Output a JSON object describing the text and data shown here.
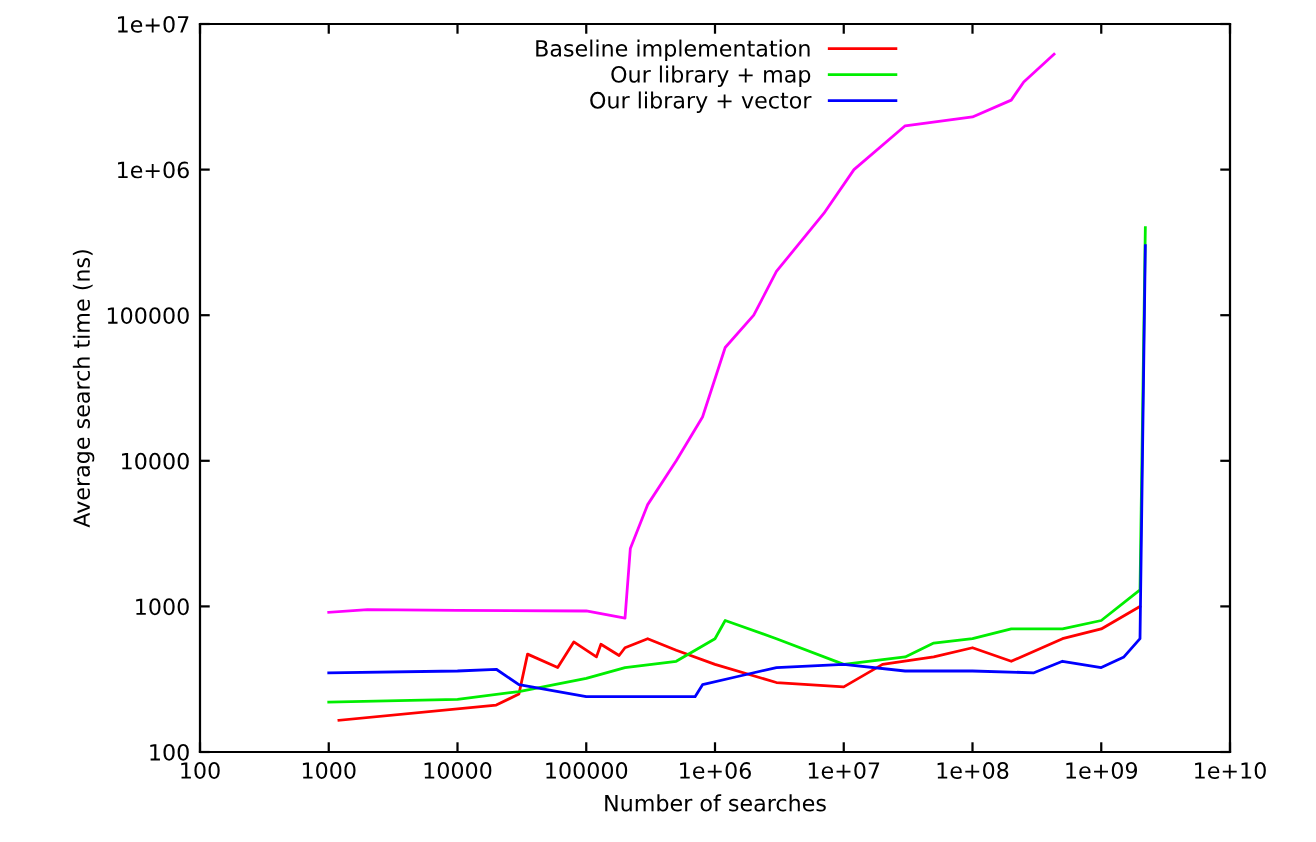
{
  "chart_data": {
    "type": "line",
    "xlabel": "Number of searches",
    "ylabel": "Average search time (ns)",
    "log": "xy",
    "xlim": [
      100,
      10000000000.0
    ],
    "ylim": [
      100,
      10000000.0
    ],
    "xticks": [
      100,
      1000,
      10000,
      100000,
      {
        "value": 1000000.0,
        "label": "1e+06"
      },
      {
        "value": 10000000.0,
        "label": "1e+07"
      },
      {
        "value": 100000000.0,
        "label": "1e+08"
      },
      {
        "value": 1000000000.0,
        "label": "1e+09"
      },
      {
        "value": 10000000000.0,
        "label": "1e+10"
      }
    ],
    "yticks": [
      100,
      1000,
      10000,
      100000,
      {
        "value": 1000000.0,
        "label": "1e+06"
      },
      {
        "value": 10000000.0,
        "label": "1e+07"
      }
    ],
    "grid": false,
    "legend": "top",
    "marker": "none",
    "line_style": "solid",
    "series": [
      {
        "name": "Baseline implementation",
        "color": "#ff0000",
        "x": [
          1200,
          20000,
          30000,
          35000,
          60000,
          80000,
          120000,
          130000,
          180000,
          200000,
          300000,
          500000,
          1000000.0,
          3000000.0,
          10000000.0,
          20000000.0,
          50000000.0,
          100000000.0,
          200000000.0,
          500000000.0,
          1000000000.0,
          2000000000.0
        ],
        "values": [
          165,
          210,
          250,
          470,
          380,
          570,
          450,
          550,
          460,
          520,
          600,
          500,
          400,
          300,
          280,
          400,
          450,
          520,
          420,
          600,
          700,
          1000
        ]
      },
      {
        "name": "Our library + map",
        "color": "#00ee00",
        "x": [
          1000,
          10000,
          30000,
          100000,
          200000,
          500000,
          1000000.0,
          1200000.0,
          3000000.0,
          10000000.0,
          30000000.0,
          50000000.0,
          100000000.0,
          200000000.0,
          500000000.0,
          1000000000.0,
          2000000000.0,
          2200000000.0
        ],
        "values": [
          220,
          230,
          260,
          320,
          380,
          420,
          600,
          800,
          600,
          400,
          450,
          560,
          600,
          700,
          700,
          800,
          1300,
          400000
        ]
      },
      {
        "name": "Our library + vector",
        "color": "#0000ff",
        "x": [
          1000,
          10000,
          20000,
          30000,
          100000,
          300000,
          700000,
          800000,
          1500000.0,
          3000000.0,
          10000000.0,
          30000000.0,
          100000000.0,
          300000000.0,
          500000000.0,
          1000000000.0,
          1500000000.0,
          2000000000.0,
          2200000000.0
        ],
        "values": [
          350,
          360,
          370,
          290,
          240,
          240,
          240,
          290,
          330,
          380,
          400,
          360,
          360,
          350,
          420,
          380,
          450,
          600,
          300000
        ]
      },
      {
        "color": "#ff00ff",
        "x": [
          1000,
          2000,
          10000,
          100000,
          200000,
          220000,
          300000,
          500000,
          800000,
          1200000.0,
          2000000.0,
          3000000.0,
          7000000.0,
          12000000.0,
          30000000.0,
          100000000.0,
          200000000.0,
          250000000.0,
          430000000.0
        ],
        "values": [
          910,
          950,
          940,
          930,
          830,
          2500,
          5000,
          10000,
          20000,
          60000,
          100000,
          200000,
          500000,
          1000000.0,
          2000000.0,
          2300000.0,
          3000000.0,
          4000000.0,
          6200000.0
        ]
      }
    ]
  }
}
